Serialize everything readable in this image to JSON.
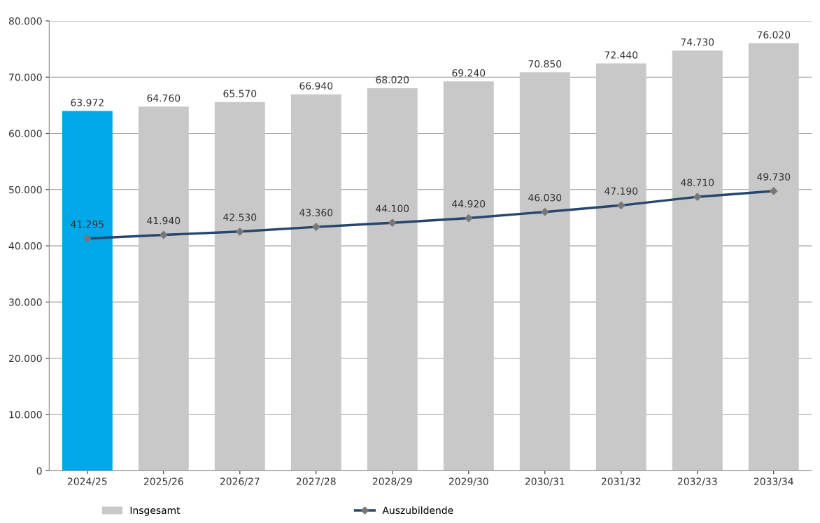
{
  "chart_data": {
    "type": "bar",
    "categories": [
      "2024/25",
      "2025/26",
      "2026/27",
      "2027/28",
      "2028/29",
      "2029/30",
      "2030/31",
      "2031/32",
      "2032/33",
      "2033/34"
    ],
    "series": [
      {
        "name": "Insgesamt",
        "color": "#c8c8c8",
        "colors": [
          "#00a8e8",
          "#c8c8c8",
          "#c8c8c8",
          "#c8c8c8",
          "#c8c8c8",
          "#c8c8c8",
          "#c8c8c8",
          "#c8c8c8",
          "#c8c8c8",
          "#c8c8c8"
        ],
        "values": [
          63972,
          64760,
          65570,
          66940,
          68020,
          69240,
          70850,
          72440,
          74730,
          76020
        ],
        "value_labels": [
          "63.972",
          "64.760",
          "65.570",
          "66.940",
          "68.020",
          "69.240",
          "70.850",
          "72.440",
          "74.730",
          "76.020"
        ]
      },
      {
        "name": "Auszubildende",
        "type": "line",
        "color": "#26466d",
        "marker": "diamond",
        "values": [
          41295,
          41940,
          42530,
          43360,
          44100,
          44920,
          46030,
          47190,
          48710,
          49730
        ],
        "value_labels": [
          "41.295",
          "41.940",
          "42.530",
          "43.360",
          "44.100",
          "44.920",
          "46.030",
          "47.190",
          "48.710",
          "49.730"
        ]
      }
    ],
    "ylim": [
      0,
      80000
    ],
    "yticks": [
      0,
      {
        "value": 10000,
        "label": "10.000"
      },
      {
        "value": 20000,
        "label": "20.000"
      },
      {
        "value": 30000,
        "label": "30.000"
      },
      {
        "value": 40000,
        "label": "40.000"
      },
      {
        "value": 50000,
        "label": "50.000"
      },
      {
        "value": 60000,
        "label": "60.000"
      },
      {
        "value": 70000,
        "label": "70.000"
      },
      {
        "value": 80000,
        "label": "80.000"
      }
    ],
    "grid": "y",
    "legend": "bottom"
  }
}
